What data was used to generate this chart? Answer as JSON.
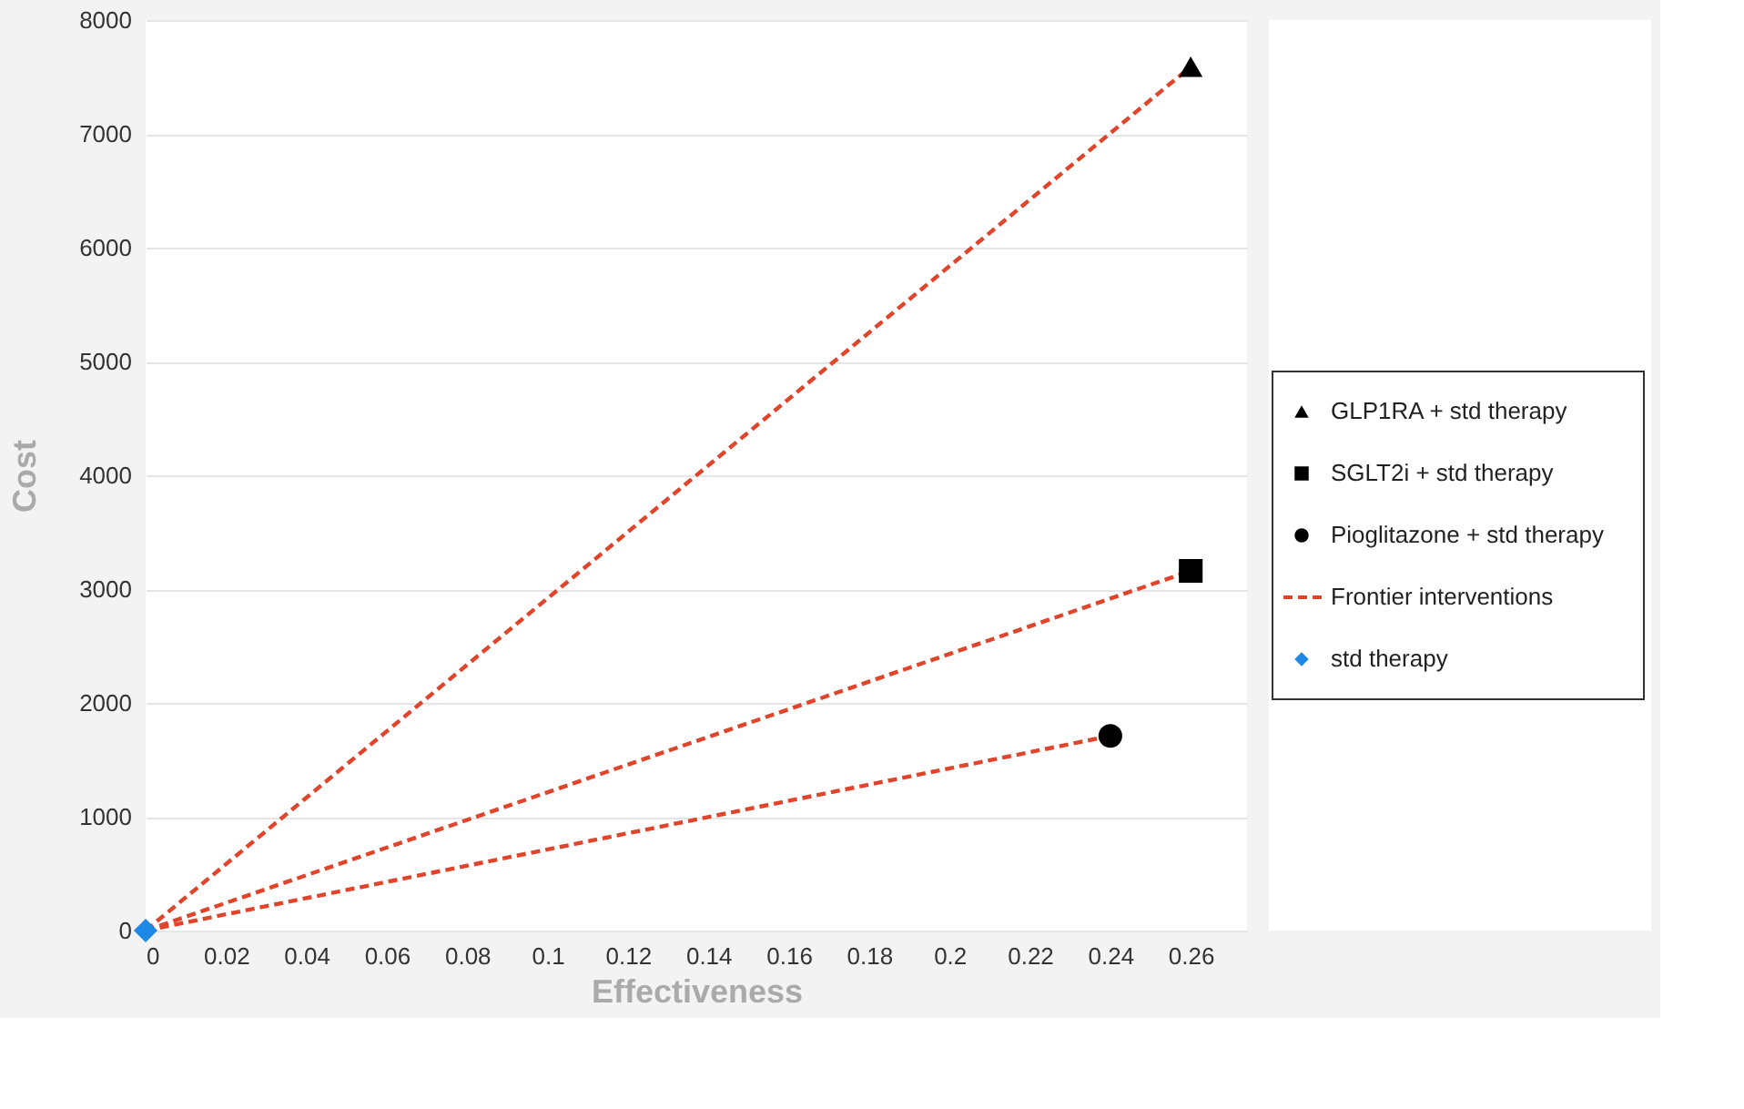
{
  "chart_data": {
    "type": "scatter",
    "xlabel": "Effectiveness",
    "ylabel": "Cost",
    "xlim": [
      0,
      0.274
    ],
    "xticks": [
      0,
      0.02,
      0.04,
      0.06,
      0.08,
      0.1,
      0.12,
      0.14,
      0.16,
      0.18,
      0.2,
      0.22,
      0.24,
      0.26
    ],
    "ylim": [
      0,
      8000
    ],
    "yticks": [
      0,
      1000,
      2000,
      3000,
      4000,
      5000,
      6000,
      7000,
      8000
    ],
    "grid": "y",
    "legend": "right",
    "series": [
      {
        "type": "scatter",
        "name": "GLP1RA + std therapy",
        "color": "#000000",
        "marker": "triangle",
        "x": [
          0.26
        ],
        "values": [
          7590
        ]
      },
      {
        "type": "scatter",
        "name": "SGLT2i + std therapy",
        "color": "#000000",
        "marker": "square",
        "x": [
          0.26
        ],
        "values": [
          3160
        ]
      },
      {
        "type": "scatter",
        "name": "Pioglitazone + std therapy",
        "color": "#000000",
        "marker": "circle",
        "x": [
          0.24
        ],
        "values": [
          1710
        ]
      },
      {
        "type": "line",
        "name": "Frontier interventions",
        "color": "#e0452b",
        "line_style": "dashed",
        "marker": "none",
        "x": [
          0,
          0.26
        ],
        "values": [
          0,
          7590
        ]
      },
      {
        "type": "line",
        "color": "#e0452b",
        "line_style": "dashed",
        "marker": "none",
        "x": [
          0,
          0.26
        ],
        "values": [
          0,
          3160
        ]
      },
      {
        "type": "line",
        "color": "#e0452b",
        "line_style": "dashed",
        "marker": "none",
        "x": [
          0,
          0.24
        ],
        "values": [
          0,
          1710
        ]
      },
      {
        "type": "scatter",
        "name": "std therapy",
        "color": "#1e88e5",
        "marker": "diamond",
        "x": [
          0
        ],
        "values": [
          0
        ]
      }
    ]
  }
}
